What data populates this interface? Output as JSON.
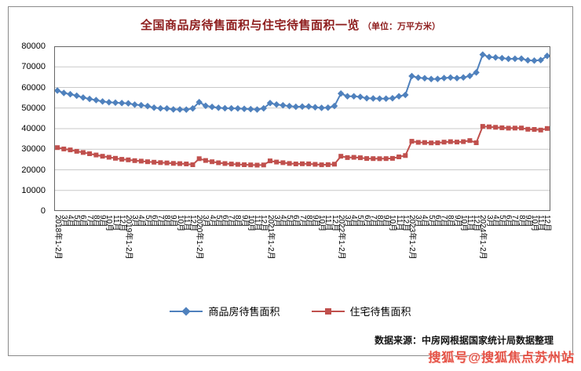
{
  "title": {
    "main": "全国商品房待售面积与住宅待售面积一览",
    "unit": "（单位：万平方米）"
  },
  "footer": {
    "source": "数据来源：中房网根据国家统计局数据整理"
  },
  "watermark": {
    "text": "搜狐号@搜狐焦点苏州站",
    "color": "#e23a2c"
  },
  "colors": {
    "title": "#8e1d1d",
    "grid": "#c9c9c9",
    "plot_border": "#666666",
    "axis_text": "#000000"
  },
  "chart_data": {
    "type": "line",
    "title": "全国商品房待售面积与住宅待售面积一览",
    "unit": "万平方米",
    "xlabel": "",
    "ylabel": "",
    "ylim": [
      0,
      80000
    ],
    "yticks": [
      0,
      10000,
      20000,
      30000,
      40000,
      50000,
      60000,
      70000,
      80000
    ],
    "grid": true,
    "legend_position": "bottom",
    "categories": [
      "2018年1-2月",
      "2018年3月",
      "2018年4月",
      "2018年5月",
      "2018年6月",
      "2018年7月",
      "2018年8月",
      "2018年9月",
      "2018年10月",
      "2018年11月",
      "2018年12月",
      "2019年1-2月",
      "2019年3月",
      "2019年4月",
      "2019年5月",
      "2019年6月",
      "2019年7月",
      "2019年8月",
      "2019年9月",
      "2019年10月",
      "2019年11月",
      "2019年12月",
      "2020年1-2月",
      "2020年3月",
      "2020年4月",
      "2020年5月",
      "2020年6月",
      "2020年7月",
      "2020年8月",
      "2020年9月",
      "2020年10月",
      "2020年11月",
      "2020年12月",
      "2021年1-2月",
      "2021年3月",
      "2021年4月",
      "2021年5月",
      "2021年6月",
      "2021年7月",
      "2021年8月",
      "2021年9月",
      "2021年10月",
      "2021年11月",
      "2021年12月",
      "2022年1-2月",
      "2022年3月",
      "2022年4月",
      "2022年5月",
      "2022年6月",
      "2022年7月",
      "2022年8月",
      "2022年9月",
      "2022年10月",
      "2022年11月",
      "2022年12月",
      "2023年1-2月",
      "2023年3月",
      "2023年4月",
      "2023年5月",
      "2023年6月",
      "2023年7月",
      "2023年8月",
      "2023年9月",
      "2023年10月",
      "2023年11月",
      "2023年12月",
      "2024年1-2月",
      "2024年3月",
      "2024年4月",
      "2024年5月",
      "2024年6月",
      "2024年7月",
      "2024年8月",
      "2024年9月",
      "2024年10月",
      "2024年11月",
      "2024年12月"
    ],
    "series": [
      {
        "name": "商品房待售面积",
        "color": "#4F81BD",
        "marker": "diamond",
        "values": [
          58468,
          57329,
          56725,
          56010,
          55083,
          54428,
          53873,
          53191,
          52789,
          52627,
          52414,
          52251,
          51646,
          51380,
          50928,
          50162,
          49876,
          49784,
          49346,
          49323,
          49221,
          49821,
          52895,
          51104,
          50536,
          50121,
          49909,
          49870,
          49784,
          49587,
          49492,
          49287,
          49850,
          52425,
          51701,
          51349,
          50929,
          50611,
          50691,
          50738,
          50385,
          50089,
          50204,
          51023,
          57026,
          55733,
          55735,
          55433,
          54784,
          54655,
          54605,
          54599,
          54734,
          55709,
          56366,
          65528,
          64770,
          64487,
          64120,
          64159,
          64564,
          64795,
          64537,
          64835,
          65585,
          67295,
          75969,
          74833,
          74553,
          74256,
          73894,
          73926,
          73965,
          73177,
          73057,
          73286,
          75327
        ]
      },
      {
        "name": "住宅待售面积",
        "color": "#C0504D",
        "marker": "square",
        "values": [
          30777,
          30130,
          29661,
          29000,
          28400,
          27800,
          27200,
          26600,
          26100,
          25600,
          25091,
          24853,
          24474,
          24210,
          23906,
          23691,
          23508,
          23335,
          23142,
          22998,
          22850,
          22473,
          25427,
          24519,
          23924,
          23416,
          23056,
          22824,
          22640,
          22466,
          22382,
          22272,
          22379,
          24355,
          23773,
          23475,
          23100,
          22862,
          22922,
          22907,
          22651,
          22423,
          22500,
          22761,
          26592,
          25954,
          26054,
          25857,
          25499,
          25439,
          25427,
          25462,
          25576,
          26269,
          26947,
          33852,
          33333,
          33247,
          33071,
          33104,
          33434,
          33661,
          33494,
          33672,
          34204,
          33139,
          41118,
          40891,
          40665,
          40414,
          40244,
          40251,
          40302,
          39711,
          39617,
          39327,
          40088
        ]
      }
    ]
  }
}
